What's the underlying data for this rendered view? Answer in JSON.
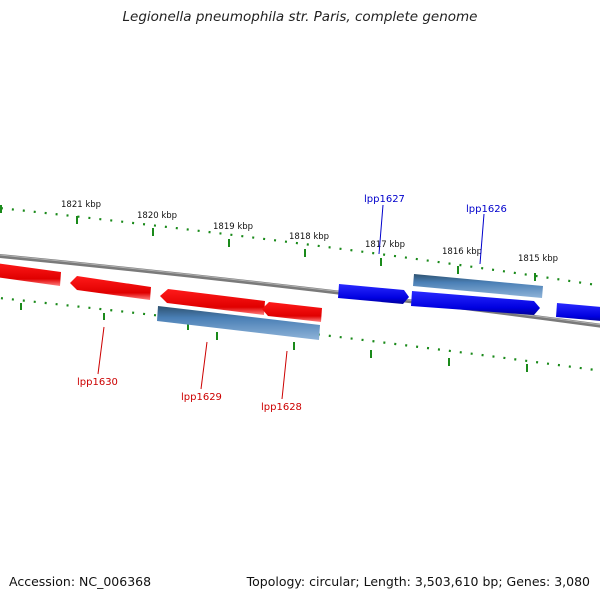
{
  "title": "Legionella pneumophila str. Paris, complete genome",
  "footer": {
    "accession": "Accession: NC_006368",
    "summary": "Topology: circular; Length: 3,503,610 bp; Genes: 3,080"
  },
  "colors": {
    "background": "#ffffff",
    "backbone": "#808080",
    "tick": "#1a8a1a",
    "forward_gene": "#0000e6",
    "reverse_gene": "#e60000",
    "feature": "#4a7fb5",
    "forward_label": "#0000cc",
    "reverse_label": "#cc0000"
  },
  "scale_labels": [
    "1821 kbp",
    "1820 kbp",
    "1819 kbp",
    "1818 kbp",
    "1817 kbp",
    "1816 kbp",
    "1815 kbp"
  ],
  "gene_labels": {
    "forward": [
      "lpp1627",
      "lpp1626"
    ],
    "reverse": [
      "lpp1630",
      "lpp1629",
      "lpp1628"
    ]
  }
}
